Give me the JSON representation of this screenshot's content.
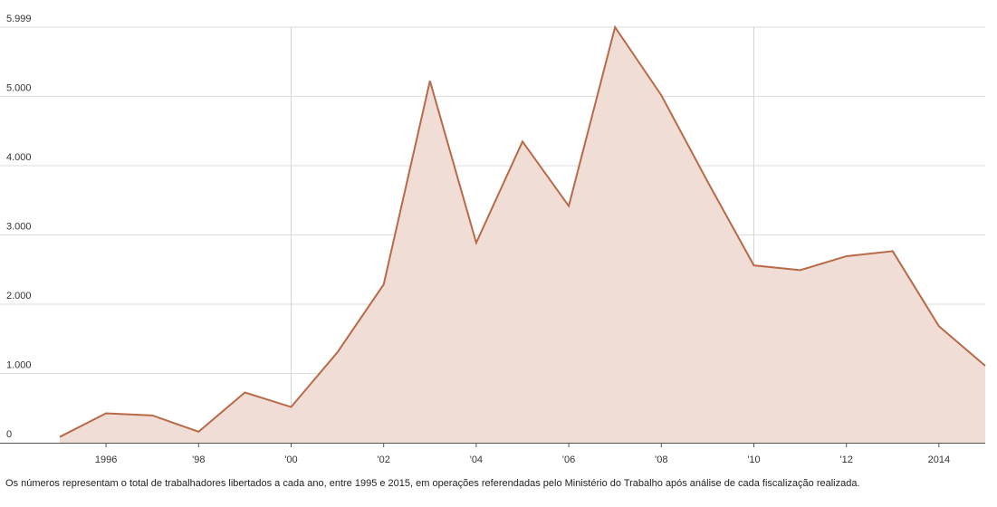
{
  "chart_data": {
    "type": "area",
    "title": "",
    "xlabel": "",
    "ylabel": "",
    "x": [
      1995,
      1996,
      1997,
      1998,
      1999,
      2000,
      2001,
      2002,
      2003,
      2004,
      2005,
      2006,
      2007,
      2008,
      2009,
      2010,
      2011,
      2012,
      2013,
      2014,
      2015
    ],
    "values": [
      84,
      425,
      394,
      159,
      725,
      516,
      1305,
      2285,
      5223,
      2887,
      4348,
      3417,
      5999,
      5016,
      3769,
      2560,
      2491,
      2693,
      2765,
      1681,
      1111
    ],
    "ylim": [
      0,
      5999
    ],
    "xlim": [
      1995,
      2015
    ],
    "y_ticks": [
      {
        "value": 5999,
        "label": "5.999"
      },
      {
        "value": 5000,
        "label": "5.000"
      },
      {
        "value": 4000,
        "label": "4.000"
      },
      {
        "value": 3000,
        "label": "3.000"
      },
      {
        "value": 2000,
        "label": "2.000"
      },
      {
        "value": 1000,
        "label": "1.000"
      },
      {
        "value": 0,
        "label": "0"
      }
    ],
    "x_ticks": [
      {
        "value": 1996,
        "label": "1996"
      },
      {
        "value": 1998,
        "label": "'98"
      },
      {
        "value": 2000,
        "label": "'00"
      },
      {
        "value": 2002,
        "label": "'02"
      },
      {
        "value": 2004,
        "label": "'04"
      },
      {
        "value": 2006,
        "label": "'06"
      },
      {
        "value": 2008,
        "label": "'08"
      },
      {
        "value": 2010,
        "label": "'10"
      },
      {
        "value": 2012,
        "label": "'12"
      },
      {
        "value": 2014,
        "label": "2014"
      }
    ],
    "vertical_guides": [
      2000,
      2010
    ],
    "grid": true,
    "legend": "none",
    "line_color": "#b86a48",
    "fill_color": "#f0ddd5"
  },
  "caption": "Os números representam o total de trabalhadores libertados a cada ano, entre 1995 e 2015, em operações referendadas pelo Ministério do Trabalho após análise de cada fiscalização realizada."
}
